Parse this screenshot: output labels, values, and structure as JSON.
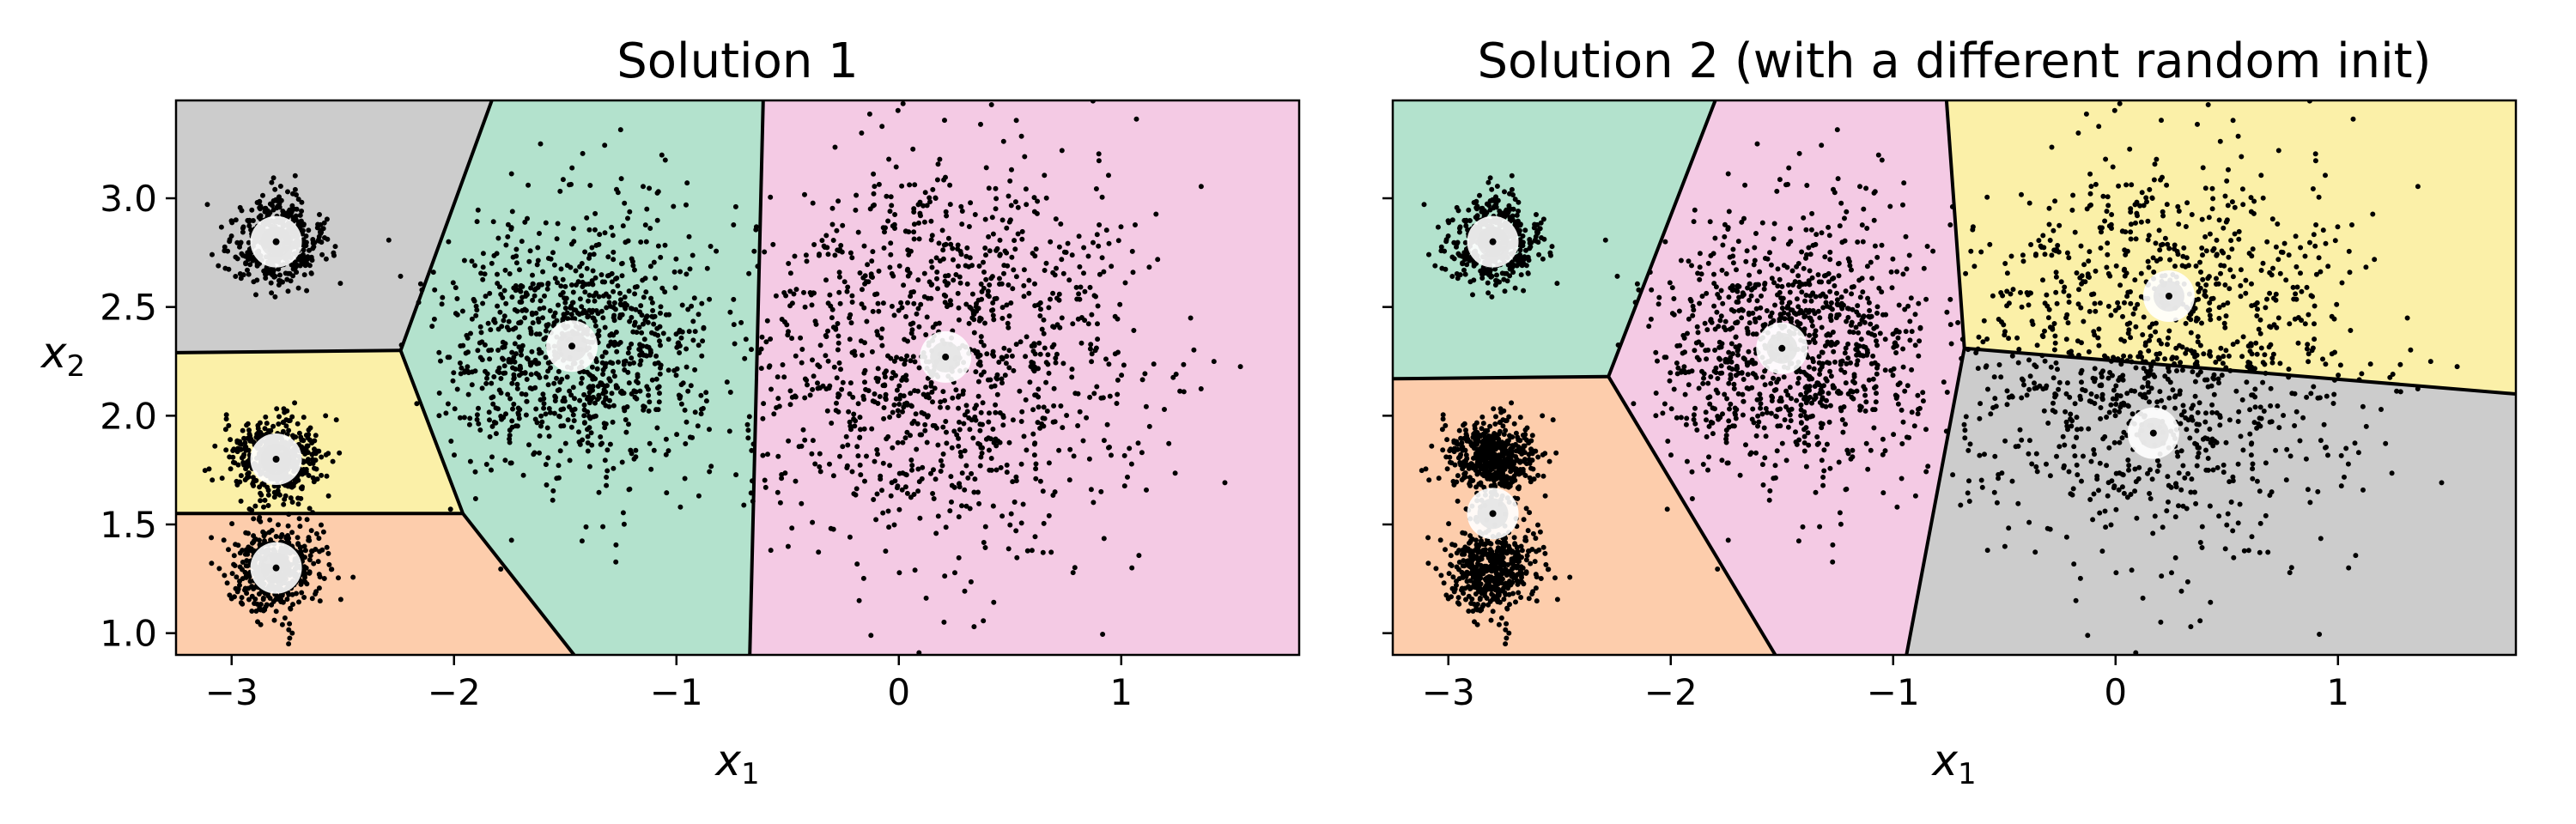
{
  "chart_data": [
    {
      "type": "scatter",
      "title": "Solution 1",
      "xlabel": "x",
      "xlabel_sub": "1",
      "ylabel": "x",
      "ylabel_sub": "2",
      "xlim": [
        -3.25,
        1.8
      ],
      "ylim": [
        0.9,
        3.45
      ],
      "x_ticks": [
        -3,
        -2,
        -1,
        0,
        1
      ],
      "x_tick_labels": [
        "−3",
        "−2",
        "−1",
        "0",
        "1"
      ],
      "y_ticks": [
        1.0,
        1.5,
        2.0,
        2.5,
        3.0
      ],
      "y_tick_labels": [
        "1.0",
        "1.5",
        "2.0",
        "2.5",
        "3.0"
      ],
      "show_y_tick_labels": true,
      "regions": [
        {
          "color": "#cccccc",
          "polygon": [
            [
              -3.25,
              3.45
            ],
            [
              -1.83,
              3.45
            ],
            [
              -2.24,
              2.3
            ],
            [
              -3.25,
              2.29
            ]
          ]
        },
        {
          "color": "#fbf0a8",
          "polygon": [
            [
              -3.25,
              2.29
            ],
            [
              -2.24,
              2.3
            ],
            [
              -1.96,
              1.55
            ],
            [
              -3.25,
              1.55
            ]
          ]
        },
        {
          "color": "#fdcdac",
          "polygon": [
            [
              -3.25,
              1.55
            ],
            [
              -1.96,
              1.55
            ],
            [
              -1.46,
              0.9
            ],
            [
              -3.25,
              0.9
            ]
          ]
        },
        {
          "color": "#b3e2cd",
          "polygon": [
            [
              -1.83,
              3.45
            ],
            [
              -0.61,
              3.45
            ],
            [
              -0.67,
              0.9
            ],
            [
              -1.46,
              0.9
            ],
            [
              -1.96,
              1.55
            ],
            [
              -2.24,
              2.3
            ]
          ]
        },
        {
          "color": "#f4cae4",
          "polygon": [
            [
              -0.61,
              3.45
            ],
            [
              1.8,
              3.45
            ],
            [
              1.8,
              0.9
            ],
            [
              -0.67,
              0.9
            ]
          ]
        }
      ],
      "boundaries": [
        [
          [
            -1.83,
            3.45
          ],
          [
            -2.24,
            2.3
          ],
          [
            -1.96,
            1.55
          ],
          [
            -1.46,
            0.9
          ]
        ],
        [
          [
            -3.25,
            2.29
          ],
          [
            -2.24,
            2.3
          ]
        ],
        [
          [
            -3.25,
            1.55
          ],
          [
            -1.96,
            1.55
          ]
        ],
        [
          [
            -0.61,
            3.45
          ],
          [
            -0.67,
            0.9
          ]
        ]
      ],
      "centroids": [
        [
          -2.8,
          2.8
        ],
        [
          -2.8,
          1.8
        ],
        [
          -2.8,
          1.3
        ],
        [
          -1.47,
          2.32
        ],
        [
          0.21,
          2.27
        ]
      ],
      "clusters": [
        {
          "center": [
            -2.8,
            2.8
          ],
          "std": 0.1,
          "n": 500
        },
        {
          "center": [
            -2.8,
            1.8
          ],
          "std": 0.1,
          "n": 500
        },
        {
          "center": [
            -2.8,
            1.3
          ],
          "std": 0.1,
          "n": 500
        },
        {
          "center": [
            -1.47,
            2.32
          ],
          "std": 0.3,
          "n": 1000
        },
        {
          "center": [
            0.21,
            2.27
          ],
          "std": 0.45,
          "n": 1200
        }
      ]
    },
    {
      "type": "scatter",
      "title": "Solution 2 (with a different random init)",
      "xlabel": "x",
      "xlabel_sub": "1",
      "ylabel": "",
      "ylabel_sub": "",
      "xlim": [
        -3.25,
        1.8
      ],
      "ylim": [
        0.9,
        3.45
      ],
      "x_ticks": [
        -3,
        -2,
        -1,
        0,
        1
      ],
      "x_tick_labels": [
        "−3",
        "−2",
        "−1",
        "0",
        "1"
      ],
      "y_ticks": [
        1.0,
        1.5,
        2.0,
        2.5,
        3.0
      ],
      "y_tick_labels": [],
      "show_y_tick_labels": false,
      "regions": [
        {
          "color": "#b3e2cd",
          "polygon": [
            [
              -3.25,
              3.45
            ],
            [
              -1.8,
              3.45
            ],
            [
              -2.28,
              2.18
            ],
            [
              -3.25,
              2.17
            ]
          ]
        },
        {
          "color": "#fdcdac",
          "polygon": [
            [
              -3.25,
              2.17
            ],
            [
              -2.28,
              2.18
            ],
            [
              -1.53,
              0.9
            ],
            [
              -3.25,
              0.9
            ]
          ]
        },
        {
          "color": "#f4cae4",
          "polygon": [
            [
              -1.8,
              3.45
            ],
            [
              -0.76,
              3.45
            ],
            [
              -0.68,
              2.31
            ],
            [
              -0.94,
              0.9
            ],
            [
              -1.53,
              0.9
            ],
            [
              -2.28,
              2.18
            ]
          ]
        },
        {
          "color": "#fbf0a8",
          "polygon": [
            [
              -0.76,
              3.45
            ],
            [
              1.8,
              3.45
            ],
            [
              1.8,
              2.1
            ],
            [
              -0.68,
              2.31
            ]
          ]
        },
        {
          "color": "#cccccc",
          "polygon": [
            [
              -0.68,
              2.31
            ],
            [
              1.8,
              2.1
            ],
            [
              1.8,
              0.9
            ],
            [
              -0.94,
              0.9
            ]
          ]
        }
      ],
      "boundaries": [
        [
          [
            -1.8,
            3.45
          ],
          [
            -2.28,
            2.18
          ],
          [
            -1.53,
            0.9
          ]
        ],
        [
          [
            -3.25,
            2.17
          ],
          [
            -2.28,
            2.18
          ]
        ],
        [
          [
            -0.76,
            3.45
          ],
          [
            -0.68,
            2.31
          ],
          [
            -0.94,
            0.9
          ]
        ],
        [
          [
            -0.68,
            2.31
          ],
          [
            1.8,
            2.1
          ]
        ]
      ],
      "centroids": [
        [
          -2.8,
          2.8
        ],
        [
          -2.8,
          1.55
        ],
        [
          -1.5,
          2.31
        ],
        [
          0.24,
          2.55
        ],
        [
          0.17,
          1.92
        ]
      ],
      "clusters": [
        {
          "center": [
            -2.8,
            2.8
          ],
          "std": 0.1,
          "n": 500
        },
        {
          "center": [
            -2.8,
            1.8
          ],
          "std": 0.1,
          "n": 500
        },
        {
          "center": [
            -2.8,
            1.3
          ],
          "std": 0.1,
          "n": 500
        },
        {
          "center": [
            -1.47,
            2.32
          ],
          "std": 0.3,
          "n": 1000
        },
        {
          "center": [
            0.21,
            2.27
          ],
          "std": 0.45,
          "n": 1200
        }
      ]
    }
  ]
}
